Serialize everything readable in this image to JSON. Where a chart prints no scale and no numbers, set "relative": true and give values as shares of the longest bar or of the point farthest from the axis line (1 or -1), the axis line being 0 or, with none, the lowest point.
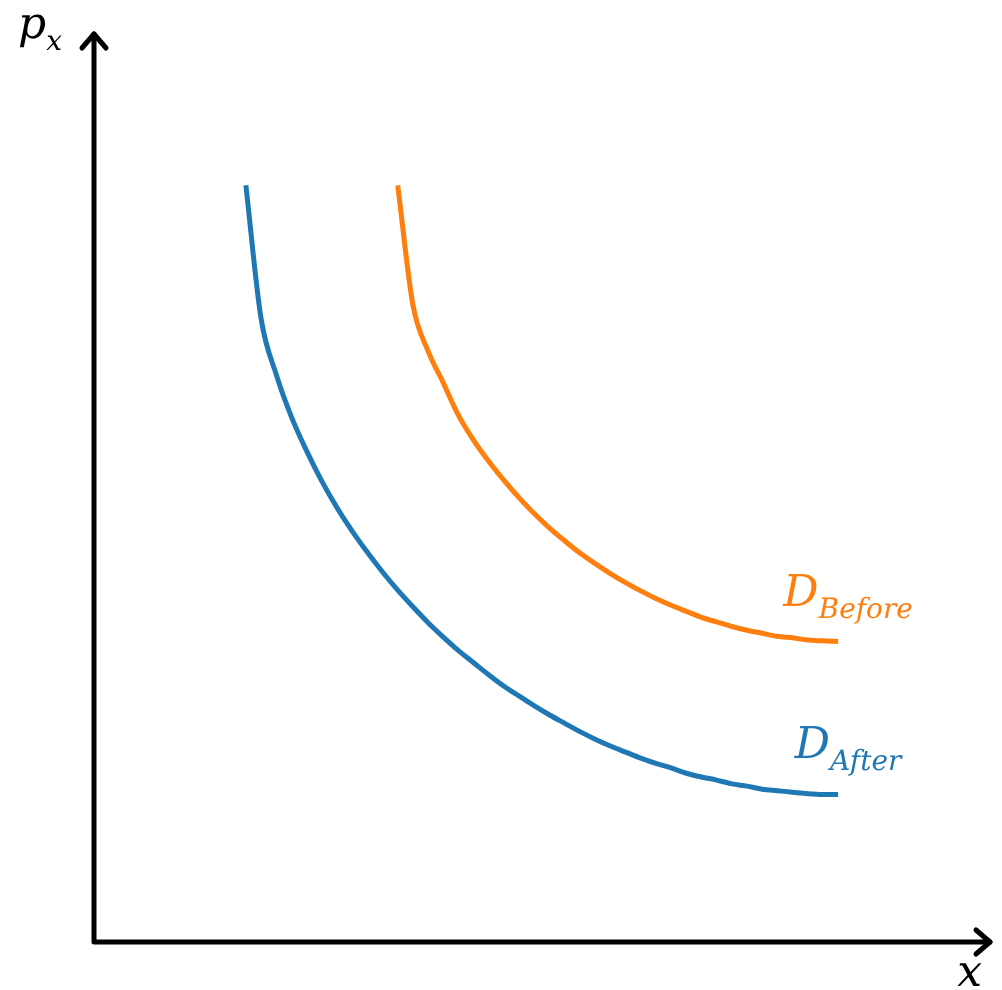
{
  "chart_data": {
    "type": "line",
    "relative": true,
    "xlabel": "x",
    "ylabel": "p$_{x}$",
    "categories": [
      null,
      null,
      null,
      null,
      null,
      null,
      null,
      null,
      null,
      null,
      null,
      null,
      null,
      null,
      null,
      null,
      null,
      null,
      null,
      null,
      null,
      null,
      null,
      null,
      null,
      null,
      null,
      null,
      null,
      null,
      null,
      null,
      null,
      null,
      null,
      null,
      null,
      null,
      null,
      null,
      null,
      null,
      null,
      null,
      null,
      null,
      null,
      null,
      null,
      null,
      null,
      null,
      null,
      null,
      null,
      null,
      null,
      null,
      null,
      null
    ],
    "series": [
      {
        "name": "D$_{Before}$",
        "color": "#ff7f0e",
        "values": [
          null,
          null,
          null,
          null,
          null,
          null,
          null,
          null,
          null,
          null,
          null,
          null,
          null,
          null,
          null,
          null,
          null,
          null,
          null,
          null,
          1,
          0.842,
          0.781,
          0.739,
          0.696,
          0.663,
          0.635,
          0.61,
          0.587,
          0.566,
          0.547,
          0.53,
          0.514,
          0.5,
          0.487,
          0.475,
          0.464,
          0.454,
          0.445,
          0.437,
          0.429,
          0.423,
          0.417,
          0.412,
          0.408,
          0.404,
          0.402,
          0.399,
          0.398,
          0.397,
          null,
          null,
          null,
          null,
          null,
          null,
          null,
          null,
          null,
          null
        ]
      },
      {
        "name": "D$_{After}$",
        "color": "#1f77b4",
        "values": [
          null,
          null,
          null,
          null,
          null,
          null,
          null,
          null,
          null,
          null,
          1,
          0.824,
          0.75,
          0.694,
          0.649,
          0.609,
          0.574,
          0.543,
          0.515,
          0.489,
          0.465,
          0.443,
          0.422,
          0.403,
          0.385,
          0.369,
          0.353,
          0.338,
          0.325,
          0.312,
          0.3,
          0.289,
          0.278,
          0.268,
          0.259,
          0.251,
          0.243,
          0.236,
          0.23,
          0.223,
          0.218,
          0.214,
          0.209,
          0.206,
          0.202,
          0.2,
          0.198,
          0.196,
          0.195,
          0.195,
          null,
          null,
          null,
          null,
          null,
          null,
          null,
          null,
          null,
          null
        ]
      }
    ]
  }
}
